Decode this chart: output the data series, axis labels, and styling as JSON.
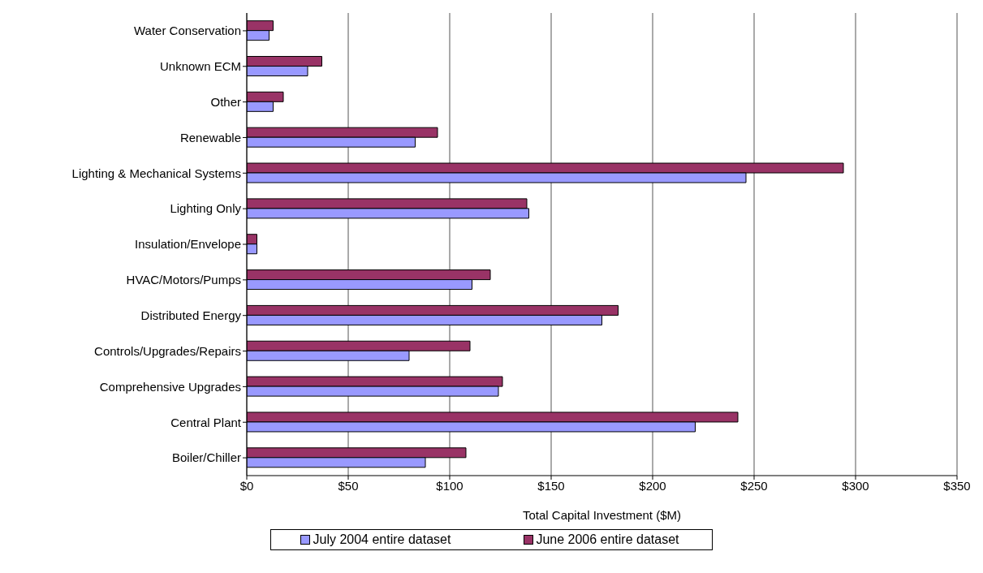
{
  "chart_data": {
    "type": "bar",
    "orientation": "horizontal",
    "xlabel": "Total Capital Investment ($M)",
    "categories": [
      "Water Conservation",
      "Unknown ECM",
      "Other",
      "Renewable",
      "Lighting & Mechanical Systems",
      "Lighting Only",
      "Insulation/Envelope",
      "HVAC/Motors/Pumps",
      "Distributed Energy",
      "Controls/Upgrades/Repairs",
      "Comprehensive Upgrades",
      "Central Plant",
      "Boiler/Chiller"
    ],
    "series": [
      {
        "name": "July 2004 entire dataset",
        "color": "#9999ff",
        "values": [
          11,
          30,
          13,
          83,
          246,
          139,
          5,
          111,
          175,
          80,
          124,
          221,
          88
        ]
      },
      {
        "name": "June 2006 entire dataset",
        "color": "#993366",
        "values": [
          13,
          37,
          18,
          94,
          294,
          138,
          5,
          120,
          183,
          110,
          126,
          242,
          108
        ]
      }
    ],
    "xlim": [
      0,
      350
    ],
    "xticks": [
      {
        "value": 0,
        "label": "$0"
      },
      {
        "value": 50,
        "label": "$50"
      },
      {
        "value": 100,
        "label": "$100"
      },
      {
        "value": 150,
        "label": "$150"
      },
      {
        "value": 200,
        "label": "$200"
      },
      {
        "value": 250,
        "label": "$250"
      },
      {
        "value": 300,
        "label": "$300"
      },
      {
        "value": 350,
        "label": "$350"
      }
    ],
    "grid": "x",
    "legend": "bottom"
  }
}
